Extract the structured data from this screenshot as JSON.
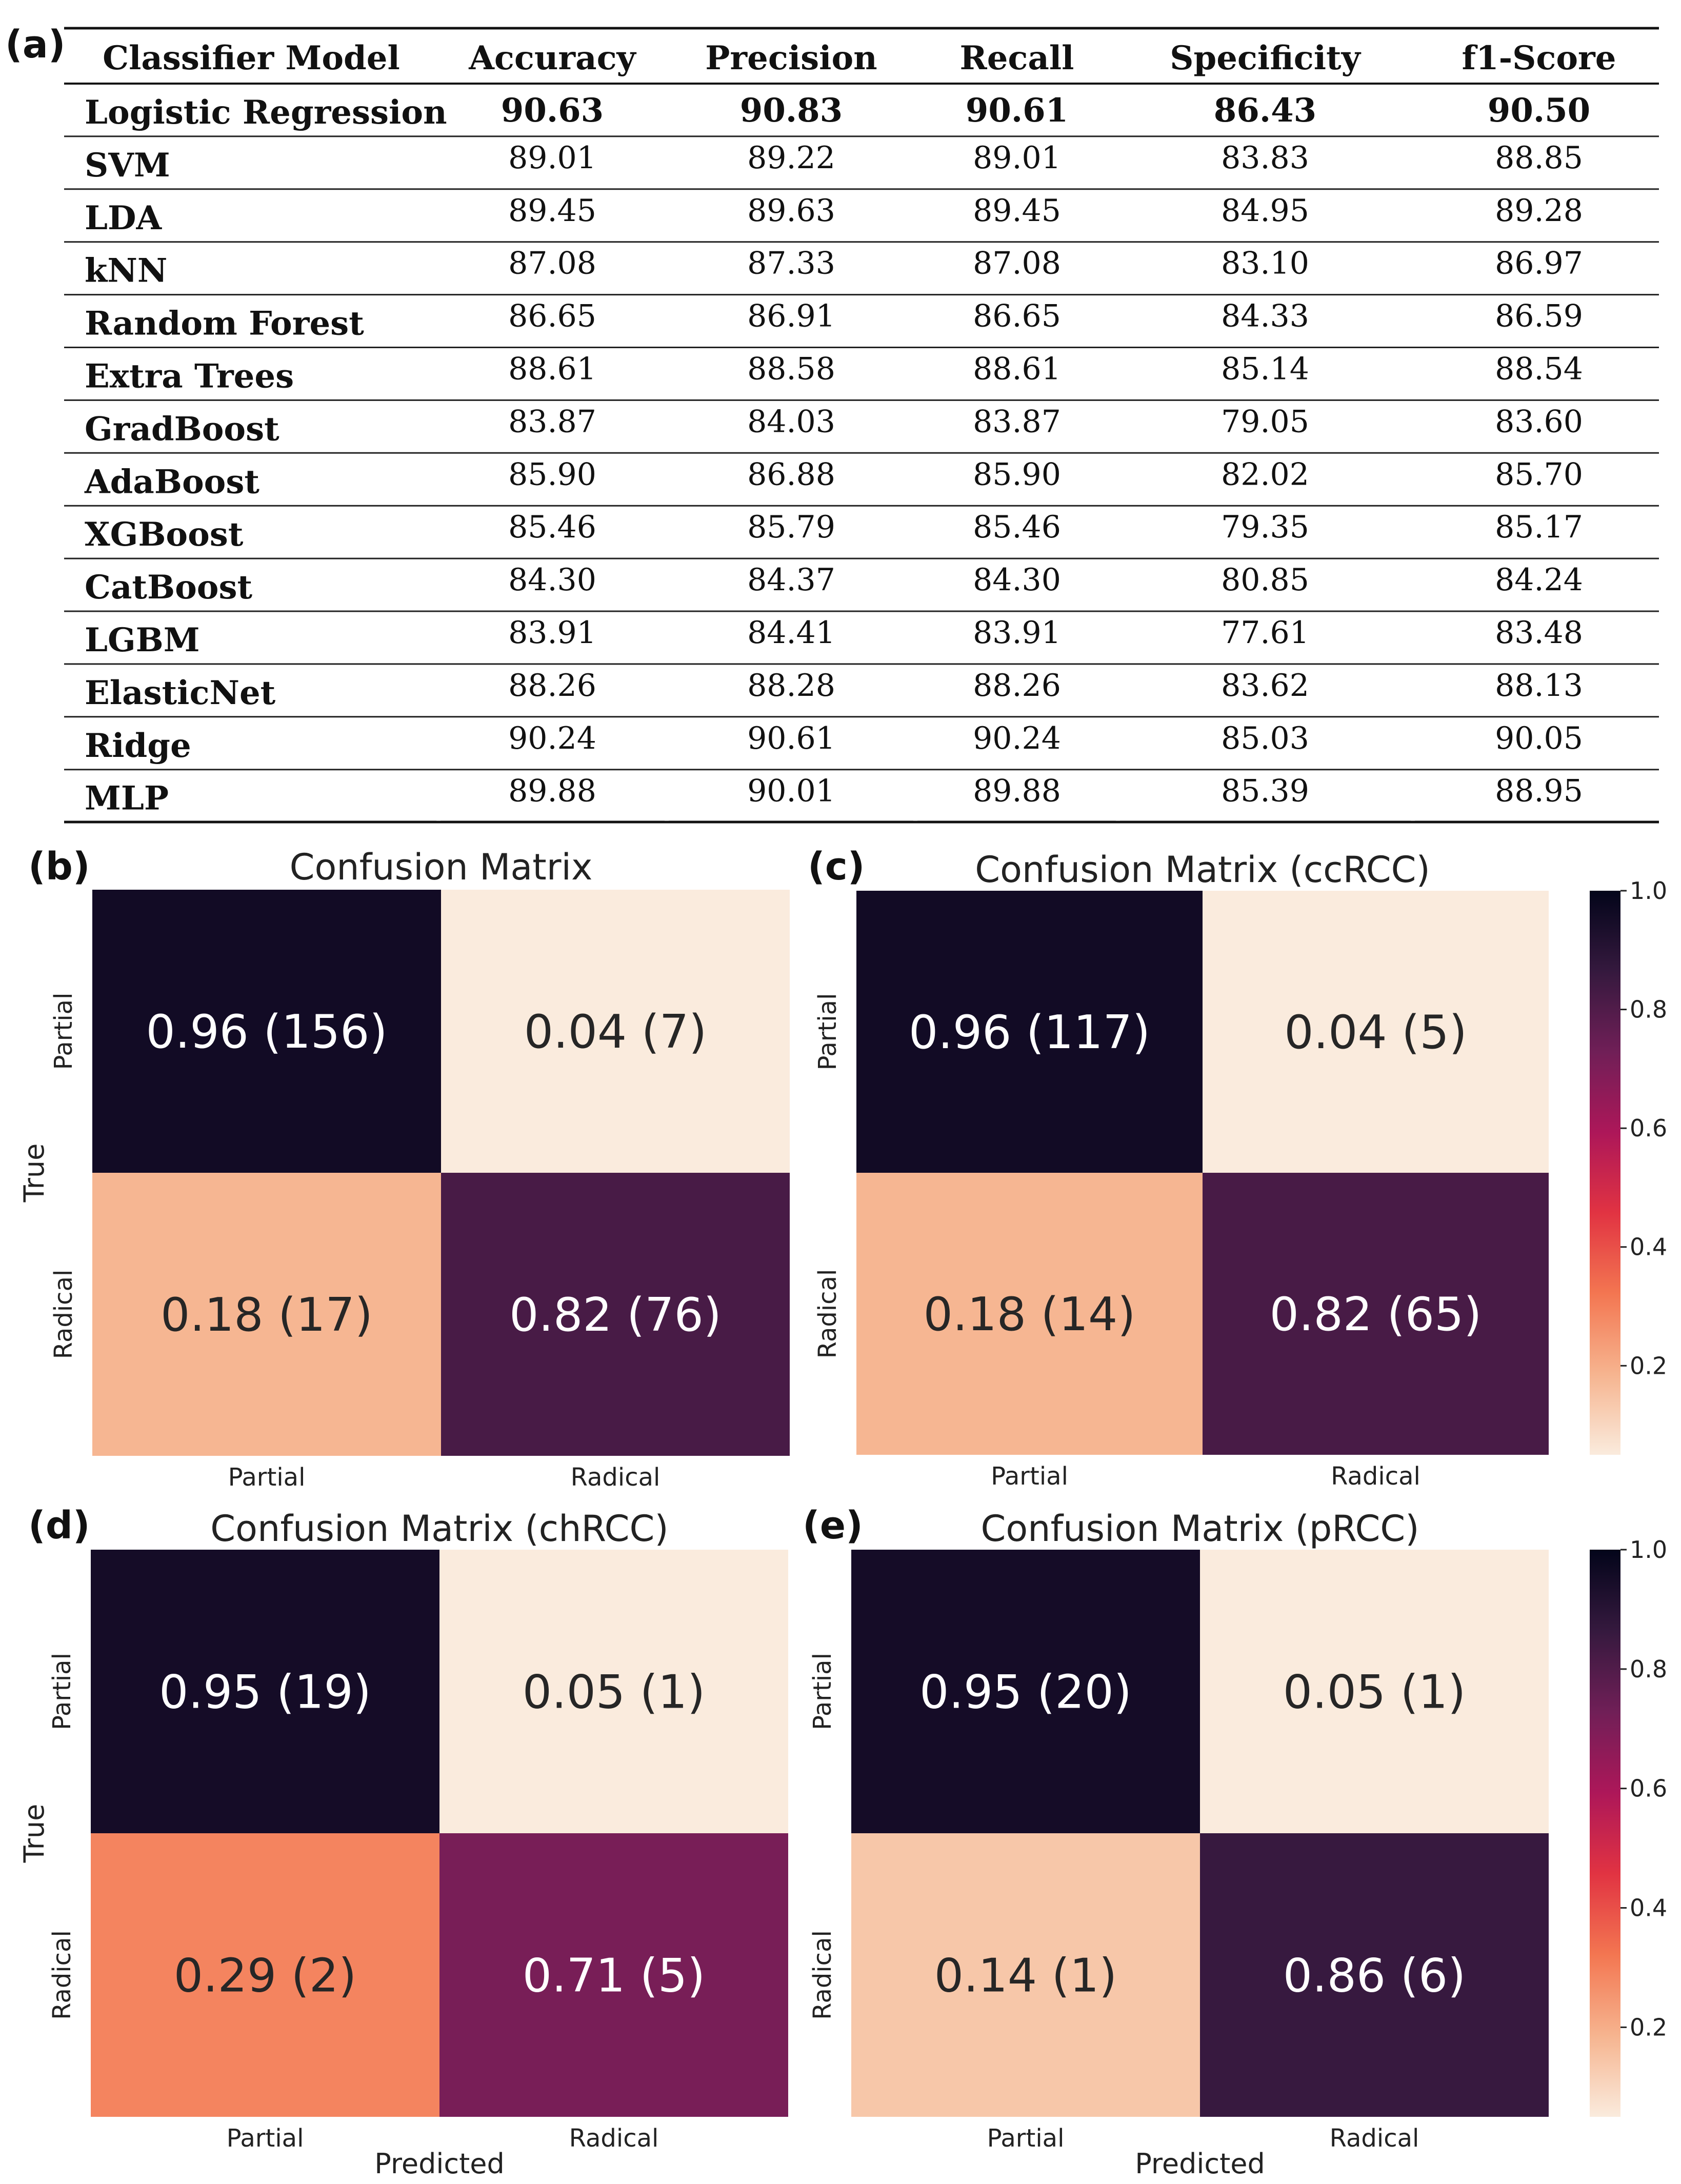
{
  "table": {
    "panel_label": "(a)",
    "headers": [
      "Classifier Model",
      "Accuracy",
      "Precision",
      "Recall",
      "Specificity",
      "f1-Score"
    ],
    "rows": [
      [
        "Logistic Regression",
        "90.63",
        "90.83",
        "90.61",
        "86.43",
        "90.50"
      ],
      [
        "SVM",
        "89.01",
        "89.22",
        "89.01",
        "83.83",
        "88.85"
      ],
      [
        "LDA",
        "89.45",
        "89.63",
        "89.45",
        "84.95",
        "89.28"
      ],
      [
        "kNN",
        "87.08",
        "87.33",
        "87.08",
        "83.10",
        "86.97"
      ],
      [
        "Random Forest",
        "86.65",
        "86.91",
        "86.65",
        "84.33",
        "86.59"
      ],
      [
        "Extra Trees",
        "88.61",
        "88.58",
        "88.61",
        "85.14",
        "88.54"
      ],
      [
        "GradBoost",
        "83.87",
        "84.03",
        "83.87",
        "79.05",
        "83.60"
      ],
      [
        "AdaBoost",
        "85.90",
        "86.88",
        "85.90",
        "82.02",
        "85.70"
      ],
      [
        "XGBoost",
        "85.46",
        "85.79",
        "85.46",
        "79.35",
        "85.17"
      ],
      [
        "CatBoost",
        "84.30",
        "84.37",
        "84.30",
        "80.85",
        "84.24"
      ],
      [
        "LGBM",
        "83.91",
        "84.41",
        "83.91",
        "77.61",
        "83.48"
      ],
      [
        "ElasticNet",
        "88.26",
        "88.28",
        "88.26",
        "83.62",
        "88.13"
      ],
      [
        "Ridge",
        "90.24",
        "90.61",
        "90.24",
        "85.03",
        "90.05"
      ],
      [
        "MLP",
        "89.88",
        "90.01",
        "89.88",
        "85.39",
        "88.95"
      ]
    ]
  },
  "chart_data": [
    {
      "type": "heatmap",
      "panel_label": "(b)",
      "title": "Confusion Matrix",
      "xlabel": "",
      "ylabel": "True",
      "x_categories": [
        "Partial",
        "Radical"
      ],
      "y_categories": [
        "Partial",
        "Radical"
      ],
      "values": [
        [
          0.96,
          0.04
        ],
        [
          0.18,
          0.82
        ]
      ],
      "counts": [
        [
          156,
          7
        ],
        [
          17,
          76
        ]
      ],
      "labels": [
        [
          "0.96 (156)",
          "0.04 (7)"
        ],
        [
          "0.18 (17)",
          "0.82 (76)"
        ]
      ],
      "colorbar": false
    },
    {
      "type": "heatmap",
      "panel_label": "(c)",
      "title": "Confusion Matrix (ccRCC)",
      "xlabel": "",
      "ylabel": "",
      "x_categories": [
        "Partial",
        "Radical"
      ],
      "y_categories": [
        "Partial",
        "Radical"
      ],
      "values": [
        [
          0.96,
          0.04
        ],
        [
          0.18,
          0.82
        ]
      ],
      "counts": [
        [
          117,
          5
        ],
        [
          14,
          65
        ]
      ],
      "labels": [
        [
          "0.96 (117)",
          "0.04 (5)"
        ],
        [
          "0.18 (14)",
          "0.82 (65)"
        ]
      ],
      "colorbar": true,
      "colorbar_ticks": [
        "1.0",
        "0.8",
        "0.6",
        "0.4",
        "0.2"
      ]
    },
    {
      "type": "heatmap",
      "panel_label": "(d)",
      "title": "Confusion Matrix (chRCC)",
      "xlabel": "Predicted",
      "ylabel": "True",
      "x_categories": [
        "Partial",
        "Radical"
      ],
      "y_categories": [
        "Partial",
        "Radical"
      ],
      "values": [
        [
          0.95,
          0.05
        ],
        [
          0.29,
          0.71
        ]
      ],
      "counts": [
        [
          19,
          1
        ],
        [
          2,
          5
        ]
      ],
      "labels": [
        [
          "0.95 (19)",
          "0.05 (1)"
        ],
        [
          "0.29 (2)",
          "0.71 (5)"
        ]
      ],
      "colorbar": false
    },
    {
      "type": "heatmap",
      "panel_label": "(e)",
      "title": "Confusion Matrix (pRCC)",
      "xlabel": "Predicted",
      "ylabel": "",
      "x_categories": [
        "Partial",
        "Radical"
      ],
      "y_categories": [
        "Partial",
        "Radical"
      ],
      "values": [
        [
          0.95,
          0.05
        ],
        [
          0.14,
          0.86
        ]
      ],
      "counts": [
        [
          20,
          1
        ],
        [
          1,
          6
        ]
      ],
      "labels": [
        [
          "0.95 (20)",
          "0.05 (1)"
        ],
        [
          "0.14 (1)",
          "0.86 (6)"
        ]
      ],
      "colorbar": true,
      "colorbar_ticks": [
        "1.0",
        "0.8",
        "0.6",
        "0.4",
        "0.2"
      ]
    }
  ],
  "colormap": {
    "name": "rocket_r",
    "range": [
      0.05,
      1.0
    ],
    "stops": [
      "#faebdd",
      "#f6b48f",
      "#f37651",
      "#e13342",
      "#ad1759",
      "#701f57",
      "#35193e",
      "#03051a"
    ]
  }
}
